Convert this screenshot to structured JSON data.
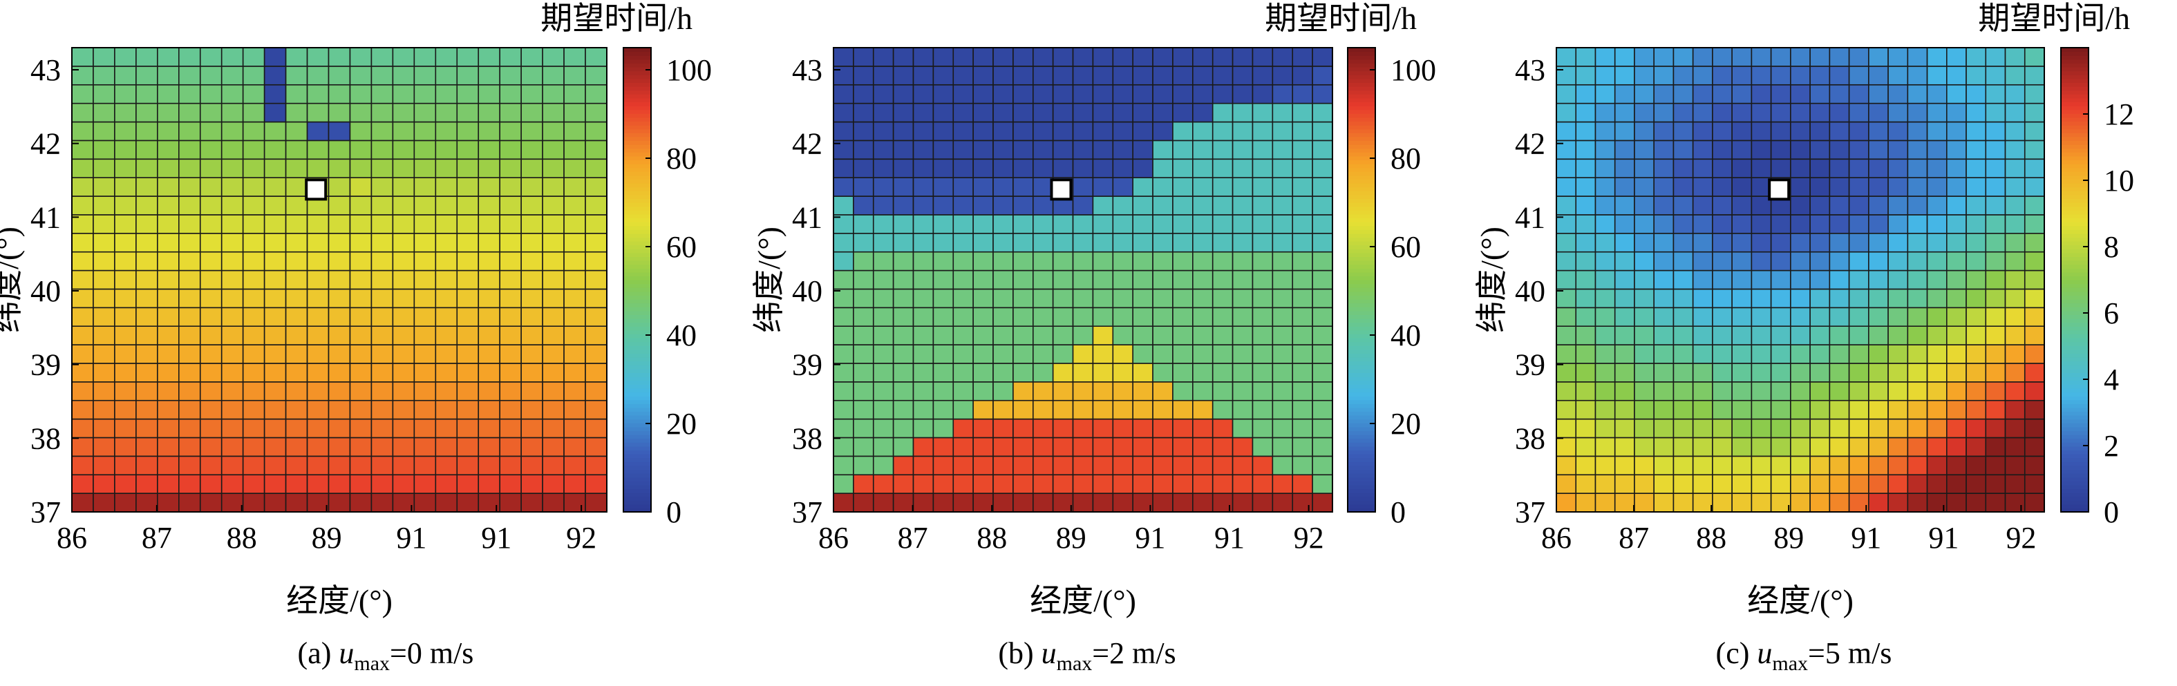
{
  "figure": {
    "panels": [
      {
        "caption_prefix": "(a) ",
        "caption_var": "u",
        "caption_sub": "max",
        "caption_suffix": "=0 m/s",
        "colorbar_title": "期望时间/h",
        "xlabel": "经度/(°)",
        "ylabel": "纬度/(°)"
      },
      {
        "caption_prefix": "(b) ",
        "caption_var": "u",
        "caption_sub": "max",
        "caption_suffix": "=2 m/s",
        "colorbar_title": "期望时间/h",
        "xlabel": "经度/(°)",
        "ylabel": "纬度/(°)"
      },
      {
        "caption_prefix": "(c) ",
        "caption_var": "u",
        "caption_sub": "max",
        "caption_suffix": "=5 m/s",
        "colorbar_title": "期望时间/h",
        "xlabel": "经度/(°)",
        "ylabel": "纬度/(°)"
      }
    ]
  },
  "colormap": [
    "#2b3a93",
    "#3b5cb8",
    "#45b6e6",
    "#5cc6a6",
    "#8ccb4c",
    "#e6e033",
    "#f6a527",
    "#e83a2c",
    "#7a1a1a"
  ],
  "marker_color": "#ffffff",
  "chart_data": [
    {
      "type": "heatmap",
      "title": "(a) umax=0 m/s",
      "xlabel": "经度/(°)",
      "ylabel": "纬度/(°)",
      "colorbar_label": "期望时间/h",
      "x_tick_labels": [
        "86",
        "87",
        "88",
        "89",
        "91",
        "91",
        "92"
      ],
      "y_tick_labels": [
        "37",
        "38",
        "39",
        "40",
        "41",
        "42",
        "43"
      ],
      "xlim": [
        86,
        92.3
      ],
      "ylim": [
        37,
        43.3
      ],
      "colorbar_range": [
        0,
        105
      ],
      "colorbar_ticks": [
        0,
        20,
        40,
        60,
        80,
        100
      ],
      "grid": {
        "cols": 25,
        "rows": 25,
        "x_start": 86,
        "y_start": 37,
        "step": 0.25
      },
      "start_point": [
        88.875,
        41.375
      ],
      "values": [
        [
          100,
          100,
          100,
          100,
          100,
          100,
          100,
          100,
          100,
          100,
          100,
          100,
          100,
          100,
          100,
          100,
          100,
          100,
          100,
          100,
          100,
          100,
          100,
          100,
          100
        ],
        [
          91,
          91,
          91,
          91,
          91,
          91,
          91,
          91,
          91,
          91,
          91,
          91,
          91,
          91,
          91,
          91,
          91,
          91,
          91,
          91,
          91,
          91,
          91,
          91,
          91
        ],
        [
          89,
          89,
          89,
          89,
          89,
          89,
          89,
          89,
          89,
          89,
          89,
          89,
          89,
          89,
          89,
          89,
          89,
          89,
          89,
          89,
          89,
          89,
          89,
          89,
          89
        ],
        [
          87,
          87,
          87,
          87,
          87,
          87,
          87,
          87,
          87,
          87,
          87,
          87,
          87,
          87,
          87,
          87,
          87,
          87,
          87,
          87,
          87,
          87,
          87,
          87,
          87
        ],
        [
          85,
          85,
          85,
          85,
          85,
          85,
          85,
          85,
          85,
          85,
          85,
          85,
          85,
          85,
          85,
          85,
          85,
          85,
          85,
          85,
          85,
          85,
          85,
          85,
          85
        ],
        [
          83,
          83,
          83,
          83,
          83,
          83,
          83,
          83,
          83,
          83,
          83,
          83,
          83,
          83,
          83,
          83,
          83,
          83,
          83,
          83,
          83,
          83,
          83,
          83,
          83
        ],
        [
          81,
          81,
          81,
          81,
          81,
          81,
          81,
          81,
          81,
          81,
          81,
          81,
          81,
          81,
          81,
          81,
          81,
          81,
          81,
          81,
          81,
          81,
          81,
          81,
          81
        ],
        [
          79,
          79,
          79,
          79,
          79,
          79,
          79,
          79,
          79,
          79,
          79,
          79,
          79,
          79,
          79,
          79,
          79,
          79,
          79,
          79,
          79,
          79,
          79,
          79,
          79
        ],
        [
          77,
          77,
          77,
          77,
          77,
          77,
          77,
          77,
          77,
          77,
          77,
          77,
          77,
          77,
          77,
          77,
          77,
          77,
          77,
          77,
          77,
          77,
          77,
          77,
          77
        ],
        [
          75,
          75,
          75,
          75,
          75,
          75,
          75,
          75,
          75,
          75,
          75,
          75,
          75,
          75,
          75,
          75,
          75,
          75,
          75,
          75,
          75,
          75,
          75,
          75,
          75
        ],
        [
          73,
          73,
          73,
          73,
          73,
          73,
          73,
          73,
          73,
          73,
          73,
          73,
          73,
          73,
          73,
          73,
          73,
          73,
          73,
          73,
          73,
          73,
          73,
          73,
          73
        ],
        [
          71,
          71,
          71,
          71,
          71,
          71,
          71,
          71,
          71,
          71,
          71,
          71,
          71,
          71,
          71,
          71,
          71,
          71,
          71,
          71,
          71,
          71,
          71,
          71,
          71
        ],
        [
          69,
          69,
          69,
          69,
          69,
          69,
          69,
          69,
          69,
          69,
          69,
          69,
          69,
          69,
          69,
          69,
          69,
          69,
          69,
          69,
          69,
          69,
          69,
          69,
          69
        ],
        [
          67,
          67,
          67,
          67,
          67,
          67,
          67,
          67,
          67,
          67,
          67,
          67,
          67,
          67,
          67,
          67,
          67,
          67,
          67,
          67,
          67,
          67,
          67,
          67,
          67
        ],
        [
          65,
          65,
          65,
          65,
          65,
          65,
          65,
          65,
          65,
          65,
          65,
          65,
          65,
          65,
          65,
          65,
          65,
          65,
          65,
          65,
          65,
          65,
          65,
          65,
          65
        ],
        [
          63,
          63,
          63,
          63,
          63,
          63,
          63,
          63,
          63,
          63,
          63,
          63,
          63,
          63,
          63,
          63,
          63,
          63,
          63,
          63,
          63,
          63,
          63,
          63,
          63
        ],
        [
          61,
          61,
          61,
          61,
          61,
          61,
          61,
          61,
          61,
          61,
          61,
          61,
          61,
          61,
          61,
          61,
          61,
          61,
          61,
          61,
          61,
          61,
          61,
          61,
          61
        ],
        [
          59,
          59,
          59,
          59,
          59,
          59,
          59,
          59,
          59,
          59,
          59,
          59,
          59,
          59,
          59,
          59,
          59,
          59,
          59,
          59,
          59,
          59,
          59,
          59,
          59
        ],
        [
          55,
          55,
          55,
          55,
          55,
          55,
          55,
          55,
          55,
          55,
          55,
          55,
          55,
          55,
          55,
          55,
          55,
          55,
          55,
          55,
          55,
          55,
          55,
          55,
          55
        ],
        [
          52,
          52,
          52,
          52,
          52,
          52,
          52,
          52,
          52,
          52,
          52,
          52,
          52,
          52,
          52,
          52,
          52,
          52,
          52,
          52,
          52,
          52,
          52,
          52,
          52
        ],
        [
          50,
          50,
          50,
          50,
          50,
          50,
          50,
          50,
          50,
          50,
          50,
          50,
          50,
          50,
          50,
          50,
          50,
          50,
          50,
          50,
          50,
          50,
          50,
          50,
          50
        ],
        [
          48,
          48,
          48,
          48,
          48,
          48,
          48,
          48,
          48,
          48,
          48,
          48,
          48,
          48,
          48,
          48,
          48,
          48,
          48,
          48,
          48,
          48,
          48,
          48,
          48
        ],
        [
          46,
          46,
          46,
          46,
          46,
          46,
          46,
          46,
          46,
          46,
          46,
          46,
          46,
          46,
          46,
          46,
          46,
          46,
          46,
          46,
          46,
          46,
          46,
          46,
          46
        ],
        [
          44,
          44,
          44,
          44,
          44,
          44,
          44,
          44,
          44,
          44,
          44,
          44,
          44,
          44,
          44,
          44,
          44,
          44,
          44,
          44,
          44,
          44,
          44,
          44,
          44
        ],
        [
          42,
          42,
          42,
          42,
          42,
          42,
          42,
          42,
          42,
          42,
          42,
          42,
          42,
          42,
          42,
          42,
          42,
          42,
          42,
          42,
          42,
          42,
          42,
          42,
          42
        ]
      ],
      "overrides": [
        [
          20,
          11,
          8
        ],
        [
          20,
          12,
          8
        ],
        [
          21,
          9,
          5
        ],
        [
          22,
          9,
          5
        ],
        [
          23,
          9,
          5
        ],
        [
          24,
          9,
          5
        ],
        [
          19,
          11,
          52
        ],
        [
          18,
          12,
          55
        ],
        [
          17,
          13,
          62
        ]
      ]
    },
    {
      "type": "heatmap",
      "title": "(b) umax=2 m/s",
      "xlabel": "经度/(°)",
      "ylabel": "纬度/(°)",
      "colorbar_label": "期望时间/h",
      "x_tick_labels": [
        "86",
        "87",
        "88",
        "89",
        "91",
        "91",
        "92"
      ],
      "y_tick_labels": [
        "37",
        "38",
        "39",
        "40",
        "41",
        "42",
        "43"
      ],
      "xlim": [
        86,
        92.3
      ],
      "ylim": [
        37,
        43.3
      ],
      "colorbar_range": [
        0,
        105
      ],
      "colorbar_ticks": [
        0,
        20,
        40,
        60,
        80,
        100
      ],
      "start_point": [
        88.875,
        41.375
      ],
      "rows_text": [
        "9999999999999999999999999",
        "4888888888888888888888884",
        "4448888888888888888888444",
        "4444888888888888888884444",
        "4444448888888888888844444",
        "4444444777777777777444444",
        "4444444447777777744444444",
        "4444444444466666444444444",
        "4444444444446664444444444",
        "4444444444444644444444444",
        "4444444444444444444444444",
        "4444444444444444444444444",
        "4444444444444444444444444",
        "3444444444444444444444444",
        "3333333333333333333333333",
        "3333333333333333333333333",
        "3222222222222333333333333",
        "2222222222222223333333333",
        "1111111111111111333333333",
        "1111111111111111333333333",
        "1111111111111111133333333",
        "1111111111111111111333333",
        "1111111111111111111111222",
        "1111111111111111111111112",
        "1111111111111111111111111"
      ],
      "value_map": {
        "1": 5,
        "2": 10,
        "3": 35,
        "4": 45,
        "6": 68,
        "7": 75,
        "8": 90,
        "9": 100
      }
    },
    {
      "type": "heatmap",
      "title": "(c) umax=5 m/s",
      "xlabel": "经度/(°)",
      "ylabel": "纬度/(°)",
      "colorbar_label": "期望时间/h",
      "x_tick_labels": [
        "86",
        "87",
        "88",
        "89",
        "91",
        "91",
        "92"
      ],
      "y_tick_labels": [
        "37",
        "38",
        "39",
        "40",
        "41",
        "42",
        "43"
      ],
      "xlim": [
        86,
        92.3
      ],
      "ylim": [
        37,
        43.3
      ],
      "colorbar_range": [
        0,
        14
      ],
      "colorbar_ticks": [
        0,
        2,
        4,
        6,
        8,
        10,
        12
      ],
      "start_point": [
        88.875,
        41.375
      ]
    }
  ]
}
